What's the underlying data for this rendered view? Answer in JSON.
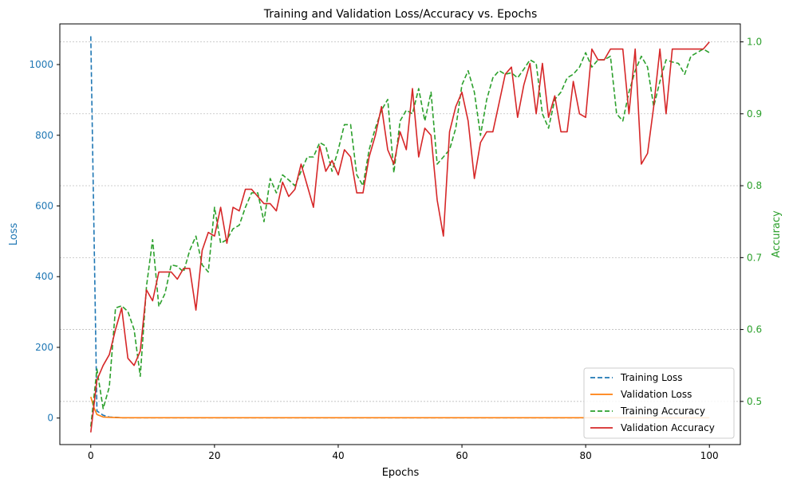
{
  "chart_data": {
    "type": "line",
    "title": "Training and Validation Loss/Accuracy vs. Epochs",
    "xlabel": "Epochs",
    "ylabel_left": "Loss",
    "ylabel_right": "Accuracy",
    "xlim": [
      -5,
      105
    ],
    "ylim_left": [
      -75,
      1115
    ],
    "ylim_right": [
      0.44,
      1.025
    ],
    "x_ticks": [
      0,
      20,
      40,
      60,
      80,
      100
    ],
    "y_left_ticks": [
      0,
      200,
      400,
      600,
      800,
      1000
    ],
    "y_right_ticks": [
      0.5,
      0.6,
      0.7,
      0.8,
      0.9,
      1.0
    ],
    "grid": "horizontal, right axis",
    "legend": "lower-right",
    "colors": {
      "left_axis": "#1f77b4",
      "right_axis": "#2ca02c",
      "training_loss": "#1f77b4",
      "validation_loss": "#ff7f0e",
      "training_accuracy": "#2ca02c",
      "validation_accuracy": "#d62728"
    },
    "series": [
      {
        "name": "Training Loss",
        "axis": "left",
        "style": "dashed",
        "color": "#1f77b4",
        "x": [
          0,
          1,
          2,
          3,
          4,
          5,
          10,
          20,
          40,
          60,
          80,
          100
        ],
        "values": [
          1080,
          20,
          8,
          3,
          2,
          1,
          1,
          1,
          1,
          1,
          1,
          1
        ]
      },
      {
        "name": "Validation Loss",
        "axis": "left",
        "style": "solid",
        "color": "#ff7f0e",
        "x": [
          0,
          0.5,
          1,
          2,
          3,
          5,
          10,
          20,
          40,
          60,
          80,
          100
        ],
        "values": [
          60,
          30,
          10,
          3,
          2,
          1,
          1,
          1,
          1,
          1,
          1,
          1
        ]
      },
      {
        "name": "Training Accuracy",
        "axis": "right",
        "style": "dashed",
        "color": "#2ca02c",
        "values": [
          0.465,
          0.545,
          0.49,
          0.52,
          0.63,
          0.633,
          0.625,
          0.6,
          0.535,
          0.66,
          0.725,
          0.632,
          0.65,
          0.69,
          0.688,
          0.68,
          0.71,
          0.73,
          0.69,
          0.68,
          0.77,
          0.72,
          0.725,
          0.74,
          0.745,
          0.77,
          0.79,
          0.79,
          0.75,
          0.81,
          0.79,
          0.815,
          0.808,
          0.8,
          0.82,
          0.84,
          0.84,
          0.86,
          0.855,
          0.82,
          0.85,
          0.885,
          0.885,
          0.815,
          0.8,
          0.85,
          0.88,
          0.905,
          0.92,
          0.818,
          0.89,
          0.905,
          0.9,
          0.935,
          0.89,
          0.93,
          0.83,
          0.84,
          0.85,
          0.88,
          0.94,
          0.96,
          0.93,
          0.87,
          0.92,
          0.95,
          0.96,
          0.955,
          0.957,
          0.95,
          0.962,
          0.975,
          0.97,
          0.9,
          0.88,
          0.92,
          0.93,
          0.95,
          0.955,
          0.965,
          0.985,
          0.965,
          0.975,
          0.975,
          0.98,
          0.9,
          0.89,
          0.93,
          0.96,
          0.98,
          0.965,
          0.91,
          0.945,
          0.975,
          0.972,
          0.97,
          0.955,
          0.98,
          0.985,
          0.99,
          0.985
        ]
      },
      {
        "name": "Validation Accuracy",
        "axis": "right",
        "style": "solid",
        "color": "#d62728",
        "values": [
          0.457,
          0.53,
          0.55,
          0.565,
          0.6,
          0.63,
          0.56,
          0.55,
          0.57,
          0.655,
          0.64,
          0.68,
          0.68,
          0.68,
          0.67,
          0.685,
          0.685,
          0.627,
          0.71,
          0.735,
          0.73,
          0.77,
          0.72,
          0.77,
          0.765,
          0.795,
          0.795,
          0.785,
          0.775,
          0.775,
          0.765,
          0.805,
          0.785,
          0.795,
          0.83,
          0.8,
          0.77,
          0.855,
          0.82,
          0.835,
          0.815,
          0.85,
          0.84,
          0.79,
          0.79,
          0.84,
          0.87,
          0.91,
          0.85,
          0.83,
          0.875,
          0.85,
          0.935,
          0.84,
          0.88,
          0.87,
          0.78,
          0.73,
          0.875,
          0.91,
          0.93,
          0.89,
          0.81,
          0.86,
          0.875,
          0.875,
          0.915,
          0.955,
          0.965,
          0.895,
          0.94,
          0.97,
          0.9,
          0.97,
          0.895,
          0.925,
          0.875,
          0.875,
          0.945,
          0.9,
          0.895,
          0.99,
          0.975,
          0.975,
          0.99,
          0.99,
          0.99,
          0.9,
          0.99,
          0.83,
          0.845,
          0.91,
          0.99,
          0.9,
          0.99,
          0.99,
          0.99,
          0.99,
          0.99,
          0.99,
          1.0
        ]
      }
    ]
  }
}
